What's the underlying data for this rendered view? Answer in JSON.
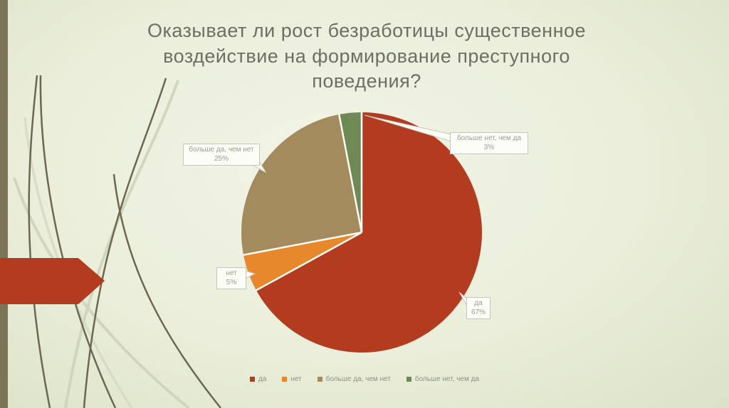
{
  "slide": {
    "title": "Оказывает ли рост безработицы существенное воздействие на формирование преступного поведения?"
  },
  "chart_data": {
    "type": "pie",
    "title": "Оказывает ли рост безработицы существенное воздействие на формирование преступного поведения?",
    "categories": [
      "да",
      "нет",
      "больше да, чем нет",
      "больше нет, чем да"
    ],
    "values": [
      67,
      5,
      25,
      3
    ],
    "colors": [
      "#b33b20",
      "#e6882b",
      "#a48b5e",
      "#6e8a54"
    ],
    "start_angle": "12 o'clock",
    "direction": "clockwise",
    "legend_position": "bottom",
    "data_labels": [
      "да 67%",
      "нет 5%",
      "больше да, чем нет 25%",
      "больше нет, чем да 3%"
    ]
  },
  "callouts": {
    "c25": {
      "line1": "больше да, чем нет",
      "line2": "25%"
    },
    "c3": {
      "line1": "больше нет, чем да",
      "line2": "3%"
    },
    "c5": {
      "line1": "нет",
      "line2": "5%"
    },
    "c67": {
      "line1": "да",
      "line2": "67%"
    }
  },
  "legend": {
    "items": [
      {
        "label": "да"
      },
      {
        "label": "нет"
      },
      {
        "label": "больше да, чем нет"
      },
      {
        "label": "больше нет, чем да"
      }
    ]
  },
  "theme": {
    "accent_arrow": "#b33b20",
    "edge_bar": "#7b7457",
    "background": "#e9edd8",
    "callout_text": "#9b9b92",
    "title_text": "#6e6e66"
  }
}
